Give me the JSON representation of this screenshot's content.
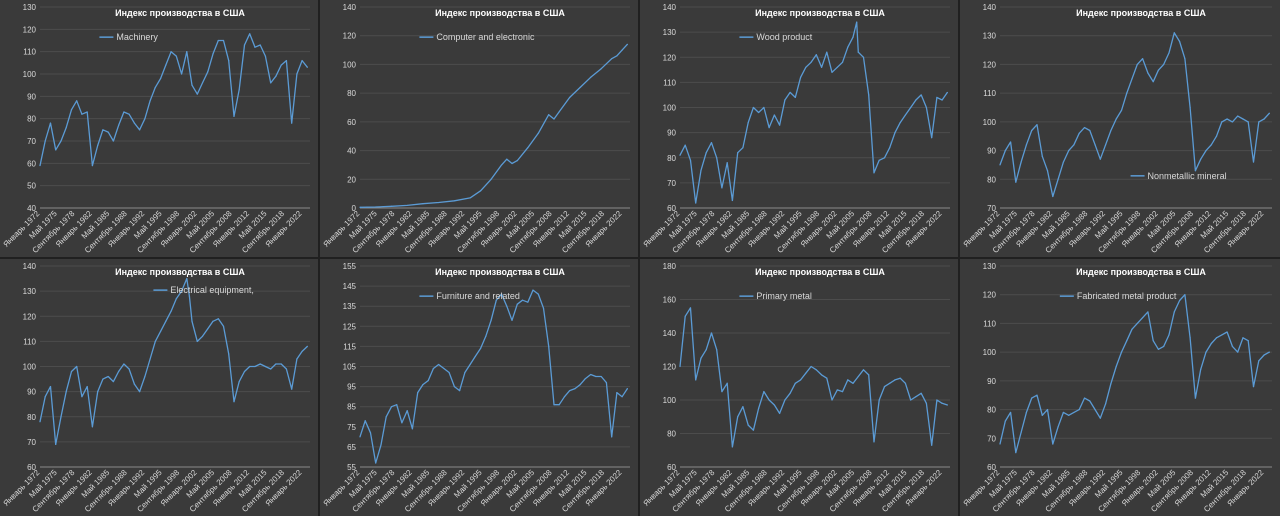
{
  "x_labels": [
    "Январь 1972",
    "Май 1975",
    "Сентябрь 1978",
    "Январь 1982",
    "Май 1985",
    "Сентябрь 1988",
    "Январь 1992",
    "Май 1995",
    "Сентябрь 1998",
    "Январь 2002",
    "Май 2005",
    "Сентябрь 2008",
    "Январь 2012",
    "Май 2015",
    "Сентябрь 2018",
    "Январь 2022"
  ],
  "x_label_dates": [
    1972.0,
    1975.33,
    1978.67,
    1982.0,
    1985.33,
    1988.67,
    1992.0,
    1995.33,
    1998.67,
    2002.0,
    2005.33,
    2008.67,
    2012.0,
    2015.33,
    2018.67,
    2022.0
  ],
  "colors": {
    "line": "#5b9bd5",
    "panel_bg": "#3a3a3a",
    "page_bg": "#202020"
  },
  "chart_data": [
    {
      "type": "line",
      "title": "Индекс производства в США",
      "legend_position": "top-left",
      "grid": true,
      "ylim": [
        40,
        130
      ],
      "yticks": [
        40,
        50,
        60,
        70,
        80,
        90,
        100,
        110,
        120,
        130
      ],
      "series": [
        {
          "name": "Machinery",
          "x": [
            1972,
            1973,
            1974,
            1975,
            1976,
            1977,
            1978,
            1979,
            1980,
            1981,
            1982,
            1983,
            1984,
            1985,
            1986,
            1987,
            1988,
            1989,
            1990,
            1991,
            1992,
            1993,
            1994,
            1995,
            1996,
            1997,
            1998,
            1999,
            2000,
            2001,
            2002,
            2003,
            2004,
            2005,
            2006,
            2007,
            2008,
            2009,
            2010,
            2011,
            2012,
            2013,
            2014,
            2015,
            2016,
            2017,
            2018,
            2019,
            2020,
            2021,
            2022,
            2023
          ],
          "y": [
            59,
            70,
            78,
            66,
            70,
            76,
            84,
            88,
            82,
            83,
            59,
            68,
            75,
            74,
            70,
            77,
            83,
            82,
            78,
            75,
            80,
            88,
            94,
            98,
            104,
            110,
            108,
            100,
            110,
            95,
            91,
            96,
            101,
            109,
            115,
            115,
            106,
            81,
            93,
            113,
            118,
            112,
            113,
            108,
            96,
            99,
            104,
            106,
            78,
            100,
            106,
            103
          ]
        }
      ]
    },
    {
      "type": "line",
      "title": "Индекс производства в США",
      "legend_position": "top-left",
      "grid": true,
      "ylim": [
        0,
        140
      ],
      "yticks": [
        0,
        20,
        40,
        60,
        80,
        100,
        120,
        140
      ],
      "series": [
        {
          "name": "Computer and electronic",
          "x": [
            1972,
            1975,
            1978,
            1981,
            1984,
            1987,
            1990,
            1993,
            1995,
            1997,
            1999,
            2000,
            2001,
            2002,
            2004,
            2006,
            2008,
            2009,
            2010,
            2012,
            2014,
            2016,
            2018,
            2020,
            2021,
            2022,
            2023
          ],
          "y": [
            0.5,
            0.7,
            1.2,
            1.8,
            3,
            3.8,
            5,
            7,
            12,
            20,
            30,
            34,
            31,
            33,
            42,
            52,
            65,
            62,
            67,
            77,
            84,
            91,
            97,
            104,
            106,
            110,
            114
          ]
        }
      ]
    },
    {
      "type": "line",
      "title": "Индекс производства в США",
      "legend_position": "top-left",
      "grid": true,
      "ylim": [
        60,
        140
      ],
      "yticks": [
        60,
        70,
        80,
        90,
        100,
        110,
        120,
        130,
        140
      ],
      "series": [
        {
          "name": "Wood product",
          "x": [
            1972,
            1973,
            1974,
            1975,
            1976,
            1977,
            1978,
            1979,
            1980,
            1981,
            1982,
            1983,
            1984,
            1985,
            1986,
            1987,
            1988,
            1989,
            1990,
            1991,
            1992,
            1993,
            1994,
            1995,
            1996,
            1997,
            1998,
            1999,
            2000,
            2001,
            2002,
            2003,
            2004,
            2005,
            2005.7,
            2006,
            2007,
            2008,
            2009,
            2010,
            2011,
            2012,
            2013,
            2014,
            2015,
            2016,
            2017,
            2018,
            2019,
            2020,
            2021,
            2022,
            2023
          ],
          "y": [
            81,
            85,
            79,
            62,
            75,
            82,
            86,
            80,
            68,
            78,
            63,
            82,
            84,
            94,
            100,
            98,
            100,
            92,
            97,
            93,
            103,
            106,
            104,
            112,
            116,
            118,
            121,
            116,
            122,
            114,
            116,
            118,
            124,
            128,
            134,
            122,
            120,
            105,
            74,
            79,
            80,
            84,
            90,
            94,
            97,
            100,
            103,
            105,
            100,
            88,
            104,
            103,
            106
          ]
        }
      ]
    },
    {
      "type": "line",
      "title": "Индекс производства в США",
      "legend_position": "mid-right",
      "grid": true,
      "ylim": [
        70,
        140
      ],
      "yticks": [
        70,
        80,
        90,
        100,
        110,
        120,
        130,
        140
      ],
      "series": [
        {
          "name": "Nonmetallic mineral",
          "x": [
            1972,
            1973,
            1974,
            1975,
            1976,
            1977,
            1978,
            1979,
            1980,
            1981,
            1982,
            1983,
            1984,
            1985,
            1986,
            1987,
            1988,
            1989,
            1990,
            1991,
            1992,
            1993,
            1994,
            1995,
            1996,
            1997,
            1998,
            1999,
            2000,
            2001,
            2002,
            2003,
            2004,
            2005,
            2006,
            2007,
            2008,
            2009,
            2010,
            2011,
            2012,
            2013,
            2014,
            2015,
            2016,
            2017,
            2018,
            2019,
            2020,
            2021,
            2022,
            2023
          ],
          "y": [
            85,
            90,
            93,
            79,
            86,
            92,
            97,
            99,
            88,
            83,
            74,
            80,
            86,
            90,
            92,
            96,
            98,
            97,
            92,
            87,
            92,
            97,
            101,
            104,
            110,
            115,
            120,
            122,
            117,
            114,
            118,
            120,
            124,
            131,
            128,
            122,
            105,
            83,
            87,
            90,
            92,
            95,
            100,
            101,
            100,
            102,
            101,
            100,
            86,
            100,
            101,
            103
          ]
        }
      ]
    },
    {
      "type": "line",
      "title": "Индекс производства в США",
      "legend_position": "top-center",
      "grid": true,
      "ylim": [
        60,
        140
      ],
      "yticks": [
        60,
        70,
        80,
        90,
        100,
        110,
        120,
        130,
        140
      ],
      "series": [
        {
          "name": "Electrical equipment,",
          "x": [
            1972,
            1973,
            1974,
            1975,
            1976,
            1977,
            1978,
            1979,
            1980,
            1981,
            1982,
            1983,
            1984,
            1985,
            1986,
            1987,
            1988,
            1989,
            1990,
            1991,
            1992,
            1993,
            1994,
            1995,
            1996,
            1997,
            1998,
            1999,
            2000,
            2000.5,
            2001,
            2002,
            2003,
            2004,
            2005,
            2006,
            2007,
            2008,
            2009,
            2010,
            2011,
            2012,
            2013,
            2014,
            2015,
            2016,
            2017,
            2018,
            2019,
            2020,
            2021,
            2022,
            2023
          ],
          "y": [
            78,
            88,
            92,
            69,
            80,
            90,
            98,
            100,
            88,
            92,
            76,
            90,
            95,
            96,
            94,
            98,
            101,
            99,
            93,
            90,
            96,
            103,
            110,
            114,
            118,
            122,
            127,
            130,
            135,
            128,
            118,
            110,
            112,
            115,
            118,
            119,
            116,
            105,
            86,
            94,
            98,
            100,
            100,
            101,
            100,
            99,
            101,
            101,
            99,
            91,
            103,
            106,
            108
          ]
        }
      ]
    },
    {
      "type": "line",
      "title": "Индекс производства в США",
      "legend_position": "top-left",
      "grid": true,
      "ylim": [
        55,
        155
      ],
      "yticks": [
        55,
        65,
        75,
        85,
        95,
        105,
        115,
        125,
        135,
        145,
        155
      ],
      "series": [
        {
          "name": "Furniture and related",
          "x": [
            1972,
            1973,
            1974,
            1975,
            1976,
            1977,
            1978,
            1979,
            1980,
            1981,
            1982,
            1983,
            1984,
            1985,
            1986,
            1987,
            1988,
            1989,
            1990,
            1991,
            1992,
            1993,
            1994,
            1995,
            1996,
            1997,
            1998,
            1999,
            2000,
            2001,
            2002,
            2003,
            2004,
            2005,
            2006,
            2007,
            2008,
            2009,
            2010,
            2011,
            2012,
            2013,
            2014,
            2015,
            2016,
            2017,
            2018,
            2019,
            2020,
            2021,
            2022,
            2023
          ],
          "y": [
            70,
            78,
            72,
            57,
            66,
            80,
            85,
            86,
            77,
            83,
            74,
            92,
            96,
            98,
            104,
            106,
            104,
            102,
            95,
            93,
            102,
            106,
            110,
            114,
            120,
            128,
            138,
            141,
            135,
            128,
            136,
            138,
            137,
            143,
            141,
            134,
            115,
            86,
            86,
            90,
            93,
            94,
            96,
            99,
            101,
            100,
            100,
            97,
            70,
            92,
            90,
            94
          ]
        }
      ]
    },
    {
      "type": "line",
      "title": "Индекс производства в США",
      "legend_position": "top-left",
      "grid": true,
      "ylim": [
        60,
        180
      ],
      "yticks": [
        60,
        80,
        100,
        120,
        140,
        160,
        180
      ],
      "series": [
        {
          "name": "Primary metal",
          "x": [
            1972,
            1973,
            1974,
            1975,
            1976,
            1977,
            1978,
            1979,
            1980,
            1981,
            1982,
            1983,
            1984,
            1985,
            1986,
            1987,
            1988,
            1989,
            1990,
            1991,
            1992,
            1993,
            1994,
            1995,
            1996,
            1997,
            1998,
            1999,
            2000,
            2001,
            2002,
            2003,
            2004,
            2005,
            2006,
            2007,
            2008,
            2009,
            2010,
            2011,
            2012,
            2013,
            2014,
            2015,
            2016,
            2017,
            2018,
            2019,
            2020,
            2021,
            2022,
            2023
          ],
          "y": [
            120,
            150,
            155,
            112,
            125,
            130,
            140,
            130,
            105,
            110,
            72,
            90,
            96,
            85,
            82,
            95,
            105,
            100,
            97,
            92,
            100,
            104,
            110,
            112,
            116,
            120,
            118,
            115,
            113,
            100,
            106,
            105,
            112,
            110,
            114,
            118,
            115,
            75,
            100,
            108,
            110,
            112,
            113,
            110,
            100,
            102,
            104,
            98,
            73,
            100,
            98,
            97
          ]
        }
      ]
    },
    {
      "type": "line",
      "title": "Индекс производства в США",
      "legend_position": "top-left",
      "grid": true,
      "ylim": [
        60,
        130
      ],
      "yticks": [
        60,
        70,
        80,
        90,
        100,
        110,
        120,
        130
      ],
      "series": [
        {
          "name": "Fabricated metal product",
          "x": [
            1972,
            1973,
            1974,
            1975,
            1976,
            1977,
            1978,
            1979,
            1980,
            1981,
            1982,
            1983,
            1984,
            1985,
            1986,
            1987,
            1988,
            1989,
            1990,
            1991,
            1992,
            1993,
            1994,
            1995,
            1996,
            1997,
            1998,
            1999,
            2000,
            2001,
            2002,
            2003,
            2004,
            2005,
            2006,
            2007,
            2008,
            2009,
            2010,
            2011,
            2012,
            2013,
            2014,
            2015,
            2016,
            2017,
            2018,
            2019,
            2020,
            2021,
            2022,
            2023
          ],
          "y": [
            68,
            76,
            79,
            65,
            72,
            79,
            84,
            85,
            78,
            80,
            68,
            74,
            79,
            78,
            79,
            80,
            84,
            83,
            80,
            77,
            82,
            89,
            95,
            100,
            104,
            108,
            110,
            112,
            114,
            104,
            101,
            102,
            106,
            114,
            118,
            120,
            105,
            84,
            94,
            100,
            103,
            105,
            106,
            107,
            102,
            100,
            105,
            104,
            88,
            97,
            99,
            100
          ]
        }
      ]
    }
  ]
}
